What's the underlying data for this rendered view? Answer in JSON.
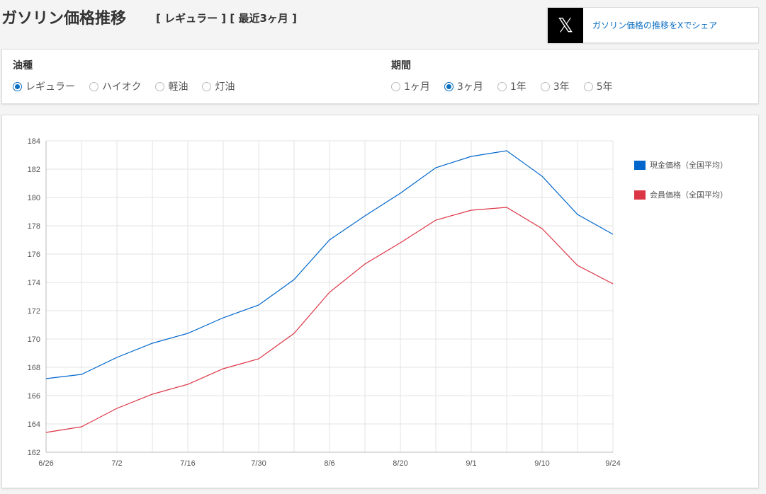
{
  "header": {
    "title": "ガソリン価格推移",
    "subtitle": "[ レギュラー ] [ 最近3ヶ月 ]"
  },
  "share": {
    "icon": "x-logo-icon",
    "logo_text": "𝕏",
    "label": "ガソリン価格の推移をXでシェア"
  },
  "fuel": {
    "label": "油種",
    "options": [
      {
        "label": "レギュラー",
        "checked": true
      },
      {
        "label": "ハイオク",
        "checked": false
      },
      {
        "label": "軽油",
        "checked": false
      },
      {
        "label": "灯油",
        "checked": false
      }
    ]
  },
  "period": {
    "label": "期間",
    "options": [
      {
        "label": "1ヶ月",
        "checked": false
      },
      {
        "label": "3ヶ月",
        "checked": true
      },
      {
        "label": "1年",
        "checked": false
      },
      {
        "label": "3年",
        "checked": false
      },
      {
        "label": "5年",
        "checked": false
      }
    ]
  },
  "chart_data": {
    "type": "line",
    "x_tick_labels": [
      "6/26",
      "7/2",
      "7/16",
      "7/30",
      "8/6",
      "8/20",
      "9/1",
      "9/10",
      "9/24"
    ],
    "point_count": 17,
    "ylim": [
      162,
      184
    ],
    "y_ticks": [
      162,
      164,
      166,
      168,
      170,
      172,
      174,
      176,
      178,
      180,
      182,
      184
    ],
    "grid": true,
    "legend_position": "right",
    "series": [
      {
        "name": "現金価格（全国平均）",
        "color": "#0066cc",
        "values": [
          167.2,
          167.5,
          168.7,
          169.7,
          170.4,
          171.5,
          172.4,
          174.2,
          177.0,
          178.7,
          180.3,
          182.1,
          182.9,
          183.3,
          181.5,
          178.8,
          177.4
        ]
      },
      {
        "name": "会員価格（全国平均）",
        "color": "#dc3545",
        "values": [
          163.4,
          163.8,
          165.1,
          166.1,
          166.8,
          167.9,
          168.6,
          170.4,
          173.3,
          175.3,
          176.8,
          178.4,
          179.1,
          179.3,
          177.8,
          175.2,
          173.9
        ]
      }
    ]
  }
}
